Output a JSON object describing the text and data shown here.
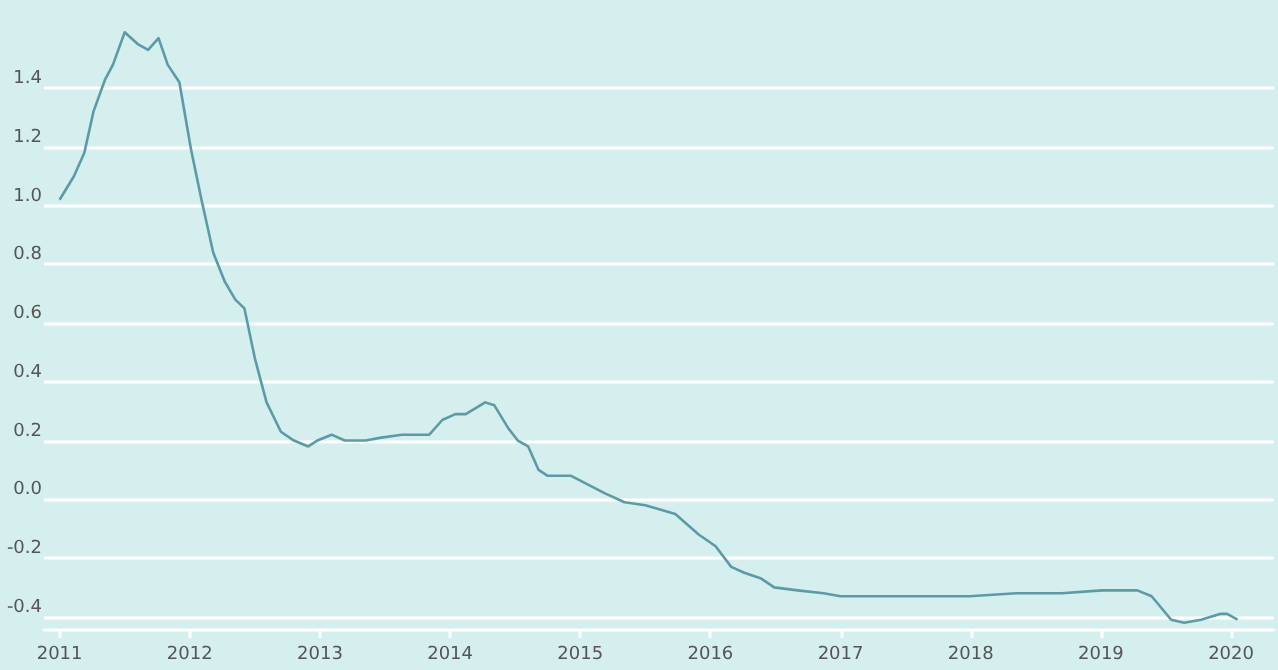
{
  "chart_data": {
    "type": "line",
    "x": [
      2011.0,
      2011.11,
      2011.19,
      2011.26,
      2011.35,
      2011.41,
      2011.5,
      2011.6,
      2011.68,
      2011.76,
      2011.83,
      2011.92,
      2012.01,
      2012.09,
      2012.18,
      2012.27,
      2012.35,
      2012.42,
      2012.5,
      2012.59,
      2012.7,
      2012.8,
      2012.91,
      2012.98,
      2013.09,
      2013.19,
      2013.35,
      2013.47,
      2013.63,
      2013.76,
      2013.84,
      2013.94,
      2014.04,
      2014.12,
      2014.27,
      2014.34,
      2014.45,
      2014.52,
      2014.6,
      2014.68,
      2014.75,
      2014.93,
      2015.06,
      2015.19,
      2015.34,
      2015.5,
      2015.73,
      2015.91,
      2016.04,
      2016.16,
      2016.26,
      2016.39,
      2016.49,
      2016.67,
      2016.87,
      2017.0,
      2017.18,
      2017.69,
      2017.99,
      2018.35,
      2018.7,
      2019.01,
      2019.28,
      2019.39,
      2019.54,
      2019.64,
      2019.77,
      2019.92,
      2019.97,
      2020.05
    ],
    "series": [
      {
        "color": "#5b9ba8",
        "values": [
          1.02,
          1.1,
          1.18,
          1.32,
          1.43,
          1.48,
          1.59,
          1.55,
          1.53,
          1.57,
          1.48,
          1.42,
          1.19,
          1.02,
          0.84,
          0.74,
          0.68,
          0.65,
          0.48,
          0.33,
          0.23,
          0.2,
          0.18,
          0.2,
          0.22,
          0.2,
          0.2,
          0.21,
          0.22,
          0.22,
          0.22,
          0.27,
          0.29,
          0.29,
          0.33,
          0.32,
          0.24,
          0.2,
          0.18,
          0.1,
          0.08,
          0.08,
          0.05,
          0.02,
          -0.01,
          -0.02,
          -0.05,
          -0.12,
          -0.16,
          -0.23,
          -0.25,
          -0.27,
          -0.3,
          -0.31,
          -0.32,
          -0.33,
          -0.33,
          -0.33,
          -0.33,
          -0.32,
          -0.32,
          -0.31,
          -0.31,
          -0.33,
          -0.41,
          -0.42,
          -0.41,
          -0.39,
          -0.39,
          -0.41
        ]
      }
    ],
    "xlim": [
      2010.88,
      2020.33
    ],
    "xticks": [
      2011,
      2012,
      2013,
      2014,
      2015,
      2016,
      2017,
      2018,
      2019,
      2020
    ],
    "ylim": [
      -0.445,
      1.7
    ],
    "yticks": [
      -0.4,
      -0.2,
      {
        "value": 0,
        "label": "0.0"
      },
      0.2,
      0.4,
      0.6,
      0.8,
      {
        "value": 1,
        "label": "1.0"
      },
      1.2,
      1.4
    ],
    "grid": "y",
    "marker": "none",
    "line_style": "solid"
  }
}
